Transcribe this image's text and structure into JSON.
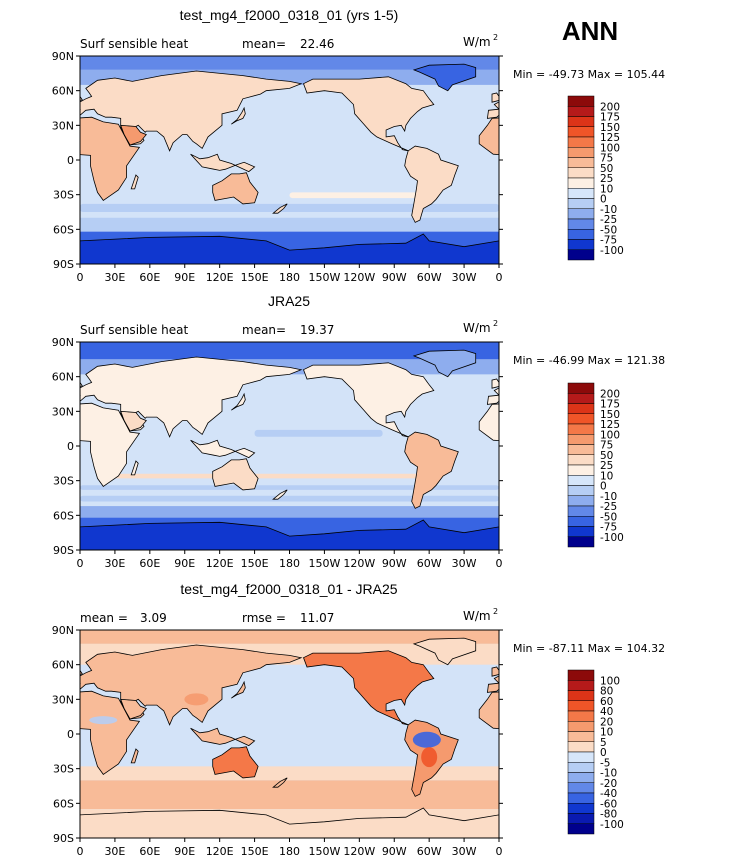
{
  "season": "ANN",
  "colors": {
    "ocean": "#d3e3f8",
    "land_warm": "#f8d4bc",
    "cold": "#3e69e6",
    "colder": "#1a3fd6",
    "dark_red": "#8c0a0a",
    "navy": "#00008c"
  },
  "chart_data": [
    {
      "type": "heatmap",
      "title": "test_mg4_f2000_0318_01 (yrs 1-5)",
      "left_label": "Surf sensible heat",
      "stat_label": "mean=",
      "stat_value": "22.46",
      "units_base": "W/m",
      "units_exp": "2",
      "min_max": "Min = -49.73 Max = 105.44",
      "y_ticks": [
        "90N",
        "60N",
        "30N",
        "0",
        "30S",
        "60S",
        "90S"
      ],
      "x_ticks": [
        "0",
        "30E",
        "60E",
        "90E",
        "120E",
        "150E",
        "180",
        "150W",
        "120W",
        "90W",
        "60W",
        "30W",
        "0"
      ],
      "xlim": [
        0,
        360
      ],
      "ylim": [
        -90,
        90
      ],
      "colorbar": {
        "labels": [
          "200",
          "175",
          "150",
          "125",
          "100",
          "75",
          "50",
          "25",
          "10",
          "0",
          "-10",
          "-25",
          "-50",
          "-75",
          "-100"
        ],
        "colors": [
          "#8c0a0a",
          "#b51a1a",
          "#dc3418",
          "#f05528",
          "#f47848",
          "#f59a6e",
          "#f8bb98",
          "#fbdcc6",
          "#fdf0e4",
          "#d6e6fa",
          "#b6cef4",
          "#8eadee",
          "#6288e8",
          "#3864e2",
          "#1037cf",
          "#00008c"
        ]
      },
      "regions": [
        {
          "name": "Antarctic band",
          "lat_range": [
            -90,
            -62
          ],
          "level": "-50 to -25"
        },
        {
          "name": "Arctic band",
          "lat_range": [
            78,
            90
          ],
          "level": "-25 to -10"
        },
        {
          "name": "Greenland",
          "level": "-50 to -25"
        },
        {
          "name": "Sahara / Australia / Arabia",
          "level": "50 to 75"
        },
        {
          "name": "Open ocean",
          "level": "0 to 10"
        }
      ]
    },
    {
      "type": "heatmap",
      "title": "JRA25",
      "left_label": "Surf sensible heat",
      "stat_label": "mean=",
      "stat_value": "19.37",
      "units_base": "W/m",
      "units_exp": "2",
      "min_max": "Min = -46.99 Max = 121.38",
      "y_ticks": [
        "90N",
        "60N",
        "30N",
        "0",
        "30S",
        "60S",
        "90S"
      ],
      "x_ticks": [
        "0",
        "30E",
        "60E",
        "90E",
        "120E",
        "150E",
        "180",
        "150W",
        "120W",
        "90W",
        "60W",
        "30W",
        "0"
      ],
      "xlim": [
        0,
        360
      ],
      "ylim": [
        -90,
        90
      ],
      "colorbar": {
        "labels": [
          "200",
          "175",
          "150",
          "125",
          "100",
          "75",
          "50",
          "25",
          "10",
          "0",
          "-10",
          "-25",
          "-50",
          "-75",
          "-100"
        ],
        "colors": [
          "#8c0a0a",
          "#b51a1a",
          "#dc3418",
          "#f05528",
          "#f47848",
          "#f59a6e",
          "#f8bb98",
          "#fbdcc6",
          "#fdf0e4",
          "#d6e6fa",
          "#b6cef4",
          "#8eadee",
          "#6288e8",
          "#3864e2",
          "#1037cf",
          "#00008c"
        ]
      },
      "regions": [
        {
          "name": "Antarctic band",
          "lat_range": [
            -90,
            -62
          ],
          "level": "-50 to -25"
        },
        {
          "name": "Arctic band",
          "lat_range": [
            75,
            90
          ],
          "level": "-50 to -25"
        },
        {
          "name": "South America",
          "level": "50 to 75"
        },
        {
          "name": "Southern ocean stripes",
          "lat_range": [
            -55,
            -35
          ],
          "level": "-25 to -10"
        },
        {
          "name": "Open ocean",
          "level": "0 to 10"
        }
      ]
    },
    {
      "type": "heatmap",
      "title": "test_mg4_f2000_0318_01 - JRA25",
      "left_label": "mean =",
      "left_value": "3.09",
      "stat_label": "rmse =",
      "stat_value": "11.07",
      "units_base": "W/m",
      "units_exp": "2",
      "min_max": "Min = -87.11 Max = 104.32",
      "y_ticks": [
        "90N",
        "60N",
        "30N",
        "0",
        "30S",
        "60S",
        "90S"
      ],
      "x_ticks": [
        "0",
        "30E",
        "60E",
        "90E",
        "120E",
        "150E",
        "180",
        "150W",
        "120W",
        "90W",
        "60W",
        "30W",
        "0"
      ],
      "xlim": [
        0,
        360
      ],
      "ylim": [
        -90,
        90
      ],
      "colorbar": {
        "labels": [
          "100",
          "80",
          "60",
          "40",
          "20",
          "10",
          "5",
          "0",
          "-5",
          "-10",
          "-20",
          "-40",
          "-60",
          "-80",
          "-100"
        ],
        "colors": [
          "#8c0a0a",
          "#b51a1a",
          "#dc3418",
          "#f05528",
          "#f47848",
          "#f59a6e",
          "#f8bb98",
          "#fbdcc6",
          "#d6e6fa",
          "#b6cef4",
          "#8eadee",
          "#6288e8",
          "#3864e2",
          "#1037cf",
          "#0a1ab0",
          "#00008c"
        ]
      },
      "regions": [
        {
          "name": "Arctic band",
          "lat_range": [
            78,
            90
          ],
          "level": "10 to 20"
        },
        {
          "name": "North America",
          "level": "20 to 40"
        },
        {
          "name": "Amazon",
          "level": "-40 to -20"
        },
        {
          "name": "Southern ocean",
          "lat_range": [
            -65,
            -40
          ],
          "level": "5 to 20"
        },
        {
          "name": "Tropical ocean",
          "level": "-5 to 5"
        }
      ]
    }
  ]
}
